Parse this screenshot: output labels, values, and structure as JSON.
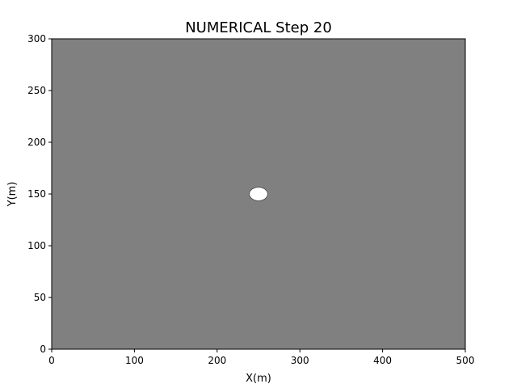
{
  "chart_data": {
    "type": "heatmap",
    "title": "NUMERICAL Step 20",
    "xlabel": "X(m)",
    "ylabel": "Y(m)",
    "xlim": [
      0,
      500
    ],
    "ylim": [
      0,
      300
    ],
    "xticks": [
      0,
      100,
      200,
      300,
      400,
      500
    ],
    "yticks": [
      0,
      50,
      100,
      150,
      200,
      250,
      300
    ],
    "grid": false,
    "background_color": "#808080",
    "features": [
      {
        "shape": "ellipse",
        "center_x": 250,
        "center_y": 150,
        "radius_x": 11,
        "radius_y": 6.5,
        "color": "#ffffff"
      }
    ]
  }
}
